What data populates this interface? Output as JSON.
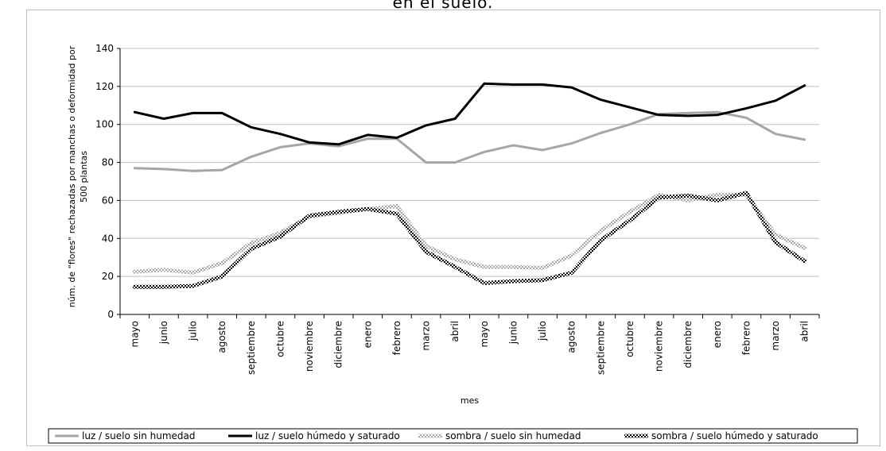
{
  "page": {
    "title_fragment": "en el suelo."
  },
  "chart_data": {
    "type": "line",
    "title": "",
    "xlabel": "mes",
    "ylabel": "núm. de \"flores\" rechazadas por manchas o deformidad por 500 plantas",
    "ylabel_lines": [
      "núm. de \"flores\" rechazadas por manchas o deformidad por",
      "500 plantas"
    ],
    "ylim": [
      0,
      140
    ],
    "yticks": [
      0,
      20,
      40,
      60,
      80,
      100,
      120,
      140
    ],
    "grid": true,
    "legend_position": "bottom",
    "categories": [
      "mayo",
      "junio",
      "julio",
      "agosto",
      "septiembre",
      "octubre",
      "noviembre",
      "diciembre",
      "enero",
      "febrero",
      "marzo",
      "abril",
      "mayo",
      "junio",
      "julio",
      "agosto",
      "septiembre",
      "octubre",
      "noviembre",
      "diciembre",
      "enero",
      "febrero",
      "marzo",
      "abril"
    ],
    "series": [
      {
        "name": "luz / suelo sin humedad",
        "color": "#a6a6a6",
        "style": "solid",
        "values": [
          77,
          76.5,
          75.5,
          76,
          83,
          88,
          90,
          88.5,
          92.5,
          92.5,
          80,
          80,
          85.5,
          89,
          86.5,
          90,
          95.5,
          100,
          105.5,
          106,
          106.5,
          103.5,
          95,
          92
        ]
      },
      {
        "name": "luz / suelo húmedo y saturado",
        "color": "#000000",
        "style": "solid",
        "values": [
          106.5,
          103,
          106,
          106,
          98.5,
          95,
          90.5,
          89.5,
          94.5,
          93,
          99.5,
          103,
          121.5,
          121,
          121,
          119.5,
          113,
          109,
          105,
          104.5,
          105,
          108.5,
          112.5,
          120.5
        ]
      },
      {
        "name": "sombra / suelo sin humedad",
        "color": "#a6a6a6",
        "style": "patterned-light",
        "values": [
          22.5,
          23.5,
          22,
          27,
          37.5,
          43,
          51.5,
          53.5,
          55.5,
          57,
          36,
          29,
          25,
          25,
          24.5,
          31,
          44,
          54,
          63,
          60,
          63,
          63,
          42,
          35
        ]
      },
      {
        "name": "sombra / suelo húmedo y saturado",
        "color": "#000000",
        "style": "patterned-dark",
        "values": [
          14.5,
          14.5,
          15,
          20,
          34.5,
          41,
          52,
          54,
          55.5,
          53,
          33,
          25,
          16.5,
          17.5,
          18,
          22,
          39,
          49.5,
          61.5,
          62.5,
          60,
          64,
          38,
          28
        ]
      }
    ]
  }
}
